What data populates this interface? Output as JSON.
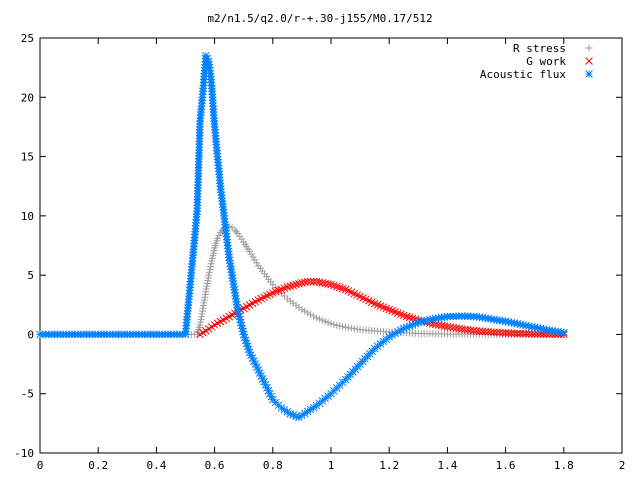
{
  "chart_data": {
    "type": "scatter",
    "title": "m2/n1.5/q2.0/r-+.30-j155/M0.17/512",
    "xlabel": "",
    "ylabel": "",
    "xlim": [
      0,
      2
    ],
    "ylim": [
      -10,
      25
    ],
    "x_ticks": [
      0,
      0.2,
      0.4,
      0.6,
      0.8,
      1,
      1.2,
      1.4,
      1.6,
      1.8,
      2
    ],
    "x_tick_labels": [
      "0",
      "0.2",
      "0.4",
      "0.6",
      "0.8",
      "1",
      "1.2",
      "1.4",
      "1.6",
      "1.8",
      "2"
    ],
    "y_ticks": [
      -10,
      -5,
      0,
      5,
      10,
      15,
      20,
      25
    ],
    "y_tick_labels": [
      "-10",
      "-5",
      "0",
      "5",
      "10",
      "15",
      "20",
      "25"
    ],
    "grid": false,
    "legend_position": "top-right",
    "series": [
      {
        "name": "R stress",
        "marker": "plus",
        "color": "#a0a0a0",
        "points": [
          [
            0,
            0
          ],
          [
            0.1,
            0
          ],
          [
            0.2,
            0
          ],
          [
            0.3,
            0
          ],
          [
            0.4,
            0
          ],
          [
            0.5,
            0
          ],
          [
            0.54,
            0
          ],
          [
            0.55,
            0.8
          ],
          [
            0.56,
            2.2
          ],
          [
            0.57,
            3.6
          ],
          [
            0.58,
            5.0
          ],
          [
            0.59,
            6.2
          ],
          [
            0.6,
            7.3
          ],
          [
            0.61,
            8.1
          ],
          [
            0.62,
            8.6
          ],
          [
            0.63,
            8.9
          ],
          [
            0.64,
            9.05
          ],
          [
            0.65,
            9.1
          ],
          [
            0.66,
            9.0
          ],
          [
            0.67,
            8.8
          ],
          [
            0.68,
            8.5
          ],
          [
            0.7,
            7.8
          ],
          [
            0.72,
            7.0
          ],
          [
            0.75,
            5.8
          ],
          [
            0.8,
            4.2
          ],
          [
            0.85,
            3.0
          ],
          [
            0.9,
            2.1
          ],
          [
            0.95,
            1.4
          ],
          [
            1.0,
            0.9
          ],
          [
            1.05,
            0.6
          ],
          [
            1.1,
            0.4
          ],
          [
            1.2,
            0.2
          ],
          [
            1.3,
            0.08
          ],
          [
            1.4,
            0.03
          ],
          [
            1.5,
            0.01
          ],
          [
            1.6,
            0.0
          ],
          [
            1.7,
            0.0
          ],
          [
            1.8,
            0.0
          ]
        ]
      },
      {
        "name": "G work",
        "marker": "cross",
        "color": "#ff0000",
        "points": [
          [
            0.55,
            0
          ],
          [
            0.57,
            0.3
          ],
          [
            0.6,
            0.8
          ],
          [
            0.65,
            1.5
          ],
          [
            0.7,
            2.2
          ],
          [
            0.75,
            2.9
          ],
          [
            0.8,
            3.5
          ],
          [
            0.85,
            4.0
          ],
          [
            0.9,
            4.35
          ],
          [
            0.92,
            4.45
          ],
          [
            0.95,
            4.45
          ],
          [
            1.0,
            4.2
          ],
          [
            1.05,
            3.8
          ],
          [
            1.1,
            3.2
          ],
          [
            1.15,
            2.6
          ],
          [
            1.2,
            2.1
          ],
          [
            1.25,
            1.6
          ],
          [
            1.3,
            1.2
          ],
          [
            1.35,
            0.9
          ],
          [
            1.4,
            0.65
          ],
          [
            1.45,
            0.45
          ],
          [
            1.5,
            0.3
          ],
          [
            1.55,
            0.2
          ],
          [
            1.6,
            0.12
          ],
          [
            1.65,
            0.07
          ],
          [
            1.7,
            0.04
          ],
          [
            1.75,
            0.02
          ],
          [
            1.8,
            0.01
          ]
        ]
      },
      {
        "name": "Acoustic flux",
        "marker": "star",
        "color": "#0080ff",
        "points": [
          [
            0,
            0
          ],
          [
            0.1,
            0
          ],
          [
            0.2,
            0
          ],
          [
            0.3,
            0
          ],
          [
            0.4,
            0
          ],
          [
            0.5,
            0
          ],
          [
            0.54,
            10.4
          ],
          [
            0.55,
            18.0
          ],
          [
            0.56,
            20.5
          ],
          [
            0.57,
            23.5
          ],
          [
            0.58,
            23.0
          ],
          [
            0.59,
            21.0
          ],
          [
            0.6,
            17.5
          ],
          [
            0.61,
            15.0
          ],
          [
            0.62,
            12.5
          ],
          [
            0.63,
            10.5
          ],
          [
            0.64,
            8.5
          ],
          [
            0.65,
            6.5
          ],
          [
            0.66,
            5.0
          ],
          [
            0.67,
            3.5
          ],
          [
            0.68,
            2.0
          ],
          [
            0.7,
            0.0
          ],
          [
            0.72,
            -1.5
          ],
          [
            0.75,
            -3.0
          ],
          [
            0.78,
            -4.5
          ],
          [
            0.8,
            -5.5
          ],
          [
            0.83,
            -6.2
          ],
          [
            0.86,
            -6.7
          ],
          [
            0.89,
            -7.0
          ],
          [
            0.92,
            -6.5
          ],
          [
            0.95,
            -6.0
          ],
          [
            1.0,
            -5.0
          ],
          [
            1.05,
            -3.8
          ],
          [
            1.1,
            -2.5
          ],
          [
            1.15,
            -1.2
          ],
          [
            1.2,
            -0.2
          ],
          [
            1.25,
            0.5
          ],
          [
            1.3,
            1.0
          ],
          [
            1.35,
            1.3
          ],
          [
            1.4,
            1.5
          ],
          [
            1.45,
            1.55
          ],
          [
            1.5,
            1.5
          ],
          [
            1.55,
            1.3
          ],
          [
            1.6,
            1.1
          ],
          [
            1.65,
            0.85
          ],
          [
            1.7,
            0.6
          ],
          [
            1.75,
            0.35
          ],
          [
            1.8,
            0.15
          ]
        ]
      }
    ]
  }
}
